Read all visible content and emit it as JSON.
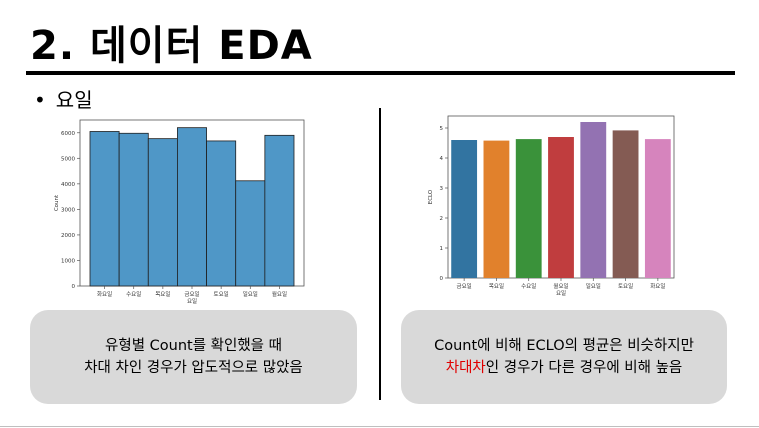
{
  "slide": {
    "title": "2. 데이터 EDA",
    "bullet": "요일"
  },
  "left_note": {
    "line1": "유형별 Count를 확인했을 때",
    "line2": "차대 차인 경우가 압도적으로 많았음"
  },
  "right_note": {
    "line1": "Count에 비해 ECLO의 평균은 비슷하지만",
    "line2_highlight": "차대차",
    "line2_rest": "인 경우가 다른 경우에 비해 높음"
  },
  "chart_data": [
    {
      "type": "bar",
      "categories": [
        "화요일",
        "수요일",
        "목요일",
        "금요일",
        "토요일",
        "일요일",
        "월요일"
      ],
      "values": [
        6050,
        5980,
        5770,
        6200,
        5680,
        4120,
        5900
      ],
      "xlabel": "요일",
      "ylabel": "Count",
      "ylim": [
        0,
        6500
      ],
      "yticks": [
        0,
        1000,
        2000,
        3000,
        4000,
        5000,
        6000
      ],
      "color": "#4f97c7",
      "grid": false
    },
    {
      "type": "bar",
      "categories": [
        "금요일",
        "목요일",
        "수요일",
        "월요일",
        "일요일",
        "토요일",
        "화요일"
      ],
      "values": [
        4.6,
        4.58,
        4.63,
        4.7,
        5.2,
        4.92,
        4.63
      ],
      "xlabel": "요일",
      "ylabel": "ECLO",
      "ylim": [
        0,
        5.4
      ],
      "yticks": [
        0,
        1,
        2,
        3,
        4,
        5
      ],
      "colors": [
        "#3274a1",
        "#e1812c",
        "#3a923a",
        "#c03d3e",
        "#9372b2",
        "#845b53",
        "#d684bd"
      ],
      "grid": false
    }
  ]
}
